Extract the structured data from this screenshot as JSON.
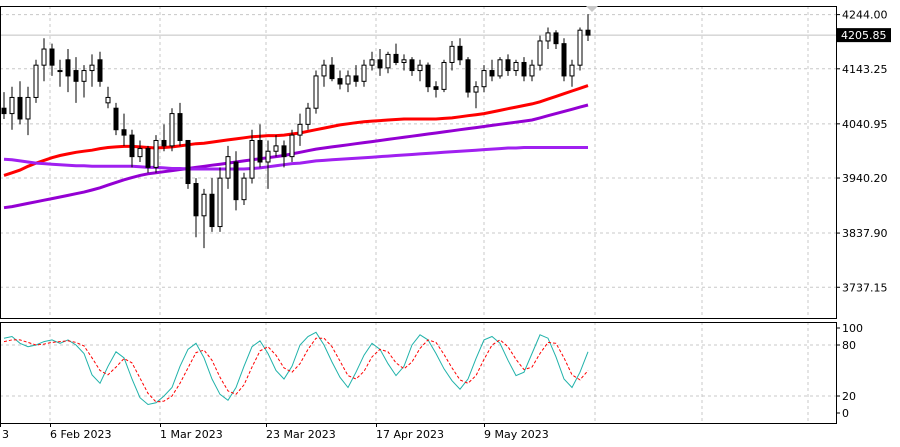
{
  "chart_data": [
    {
      "type": "candlestick",
      "price_axis": {
        "ylim": [
          3680,
          4260
        ],
        "ticks": [
          "4244.00",
          "4143.25",
          "4040.95",
          "3940.20",
          "3837.90",
          "3737.15"
        ],
        "current_price_label": "4205.85",
        "current_price": 4205.85
      },
      "candles": [
        {
          "o": 4070,
          "h": 4100,
          "l": 4050,
          "c": 4060
        },
        {
          "o": 4060,
          "h": 4110,
          "l": 4030,
          "c": 4090
        },
        {
          "o": 4090,
          "h": 4120,
          "l": 4040,
          "c": 4050
        },
        {
          "o": 4050,
          "h": 4110,
          "l": 4020,
          "c": 4090
        },
        {
          "o": 4090,
          "h": 4160,
          "l": 4080,
          "c": 4150
        },
        {
          "o": 4150,
          "h": 4200,
          "l": 4120,
          "c": 4180
        },
        {
          "o": 4180,
          "h": 4190,
          "l": 4130,
          "c": 4150
        },
        {
          "o": 4140,
          "h": 4160,
          "l": 4110,
          "c": 4140
        },
        {
          "o": 4160,
          "h": 4180,
          "l": 4100,
          "c": 4130
        },
        {
          "o": 4140,
          "h": 4165,
          "l": 4080,
          "c": 4120
        },
        {
          "o": 4120,
          "h": 4150,
          "l": 4090,
          "c": 4140
        },
        {
          "o": 4140,
          "h": 4170,
          "l": 4110,
          "c": 4150
        },
        {
          "o": 4160,
          "h": 4175,
          "l": 4110,
          "c": 4120
        },
        {
          "o": 4080,
          "h": 4110,
          "l": 4070,
          "c": 4090
        },
        {
          "o": 4070,
          "h": 4080,
          "l": 4020,
          "c": 4030
        },
        {
          "o": 4030,
          "h": 4060,
          "l": 4000,
          "c": 4020
        },
        {
          "o": 4020,
          "h": 4030,
          "l": 3960,
          "c": 3980
        },
        {
          "o": 3980,
          "h": 4010,
          "l": 3970,
          "c": 3995
        },
        {
          "o": 3995,
          "h": 4000,
          "l": 3950,
          "c": 3960
        },
        {
          "o": 3960,
          "h": 4020,
          "l": 3950,
          "c": 4010
        },
        {
          "o": 4010,
          "h": 4040,
          "l": 3990,
          "c": 4000
        },
        {
          "o": 4000,
          "h": 4070,
          "l": 3990,
          "c": 4060
        },
        {
          "o": 4060,
          "h": 4080,
          "l": 4000,
          "c": 4010
        },
        {
          "o": 4010,
          "h": 4010,
          "l": 3920,
          "c": 3930
        },
        {
          "o": 3930,
          "h": 3940,
          "l": 3830,
          "c": 3870
        },
        {
          "o": 3870,
          "h": 3920,
          "l": 3810,
          "c": 3910
        },
        {
          "o": 3910,
          "h": 3940,
          "l": 3840,
          "c": 3850
        },
        {
          "o": 3850,
          "h": 3960,
          "l": 3840,
          "c": 3940
        },
        {
          "o": 3940,
          "h": 4000,
          "l": 3920,
          "c": 3980
        },
        {
          "o": 3970,
          "h": 3990,
          "l": 3880,
          "c": 3900
        },
        {
          "o": 3900,
          "h": 3950,
          "l": 3890,
          "c": 3940
        },
        {
          "o": 3940,
          "h": 4030,
          "l": 3930,
          "c": 4010
        },
        {
          "o": 4010,
          "h": 4040,
          "l": 3960,
          "c": 3970
        },
        {
          "o": 3970,
          "h": 4010,
          "l": 3920,
          "c": 3990
        },
        {
          "o": 3990,
          "h": 4020,
          "l": 3980,
          "c": 4000
        },
        {
          "o": 4000,
          "h": 4010,
          "l": 3960,
          "c": 3980
        },
        {
          "o": 3980,
          "h": 4030,
          "l": 3970,
          "c": 4020
        },
        {
          "o": 4020,
          "h": 4060,
          "l": 4000,
          "c": 4040
        },
        {
          "o": 4040,
          "h": 4080,
          "l": 4030,
          "c": 4070
        },
        {
          "o": 4070,
          "h": 4140,
          "l": 4060,
          "c": 4130
        },
        {
          "o": 4130,
          "h": 4160,
          "l": 4110,
          "c": 4150
        },
        {
          "o": 4150,
          "h": 4165,
          "l": 4120,
          "c": 4125
        },
        {
          "o": 4125,
          "h": 4140,
          "l": 4105,
          "c": 4115
        },
        {
          "o": 4115,
          "h": 4140,
          "l": 4100,
          "c": 4130
        },
        {
          "o": 4130,
          "h": 4150,
          "l": 4110,
          "c": 4120
        },
        {
          "o": 4120,
          "h": 4160,
          "l": 4110,
          "c": 4150
        },
        {
          "o": 4150,
          "h": 4175,
          "l": 4140,
          "c": 4160
        },
        {
          "o": 4160,
          "h": 4180,
          "l": 4130,
          "c": 4145
        },
        {
          "o": 4145,
          "h": 4175,
          "l": 4135,
          "c": 4170
        },
        {
          "o": 4170,
          "h": 4190,
          "l": 4150,
          "c": 4155
        },
        {
          "o": 4155,
          "h": 4170,
          "l": 4140,
          "c": 4160
        },
        {
          "o": 4160,
          "h": 4165,
          "l": 4130,
          "c": 4140
        },
        {
          "o": 4140,
          "h": 4160,
          "l": 4120,
          "c": 4150
        },
        {
          "o": 4150,
          "h": 4155,
          "l": 4100,
          "c": 4110
        },
        {
          "o": 4110,
          "h": 4120,
          "l": 4090,
          "c": 4105
        },
        {
          "o": 4105,
          "h": 4160,
          "l": 4100,
          "c": 4155
        },
        {
          "o": 4155,
          "h": 4195,
          "l": 4140,
          "c": 4185
        },
        {
          "o": 4185,
          "h": 4200,
          "l": 4150,
          "c": 4160
        },
        {
          "o": 4160,
          "h": 4165,
          "l": 4090,
          "c": 4100
        },
        {
          "o": 4100,
          "h": 4120,
          "l": 4070,
          "c": 4110
        },
        {
          "o": 4110,
          "h": 4150,
          "l": 4100,
          "c": 4140
        },
        {
          "o": 4140,
          "h": 4160,
          "l": 4120,
          "c": 4130
        },
        {
          "o": 4130,
          "h": 4165,
          "l": 4125,
          "c": 4160
        },
        {
          "o": 4160,
          "h": 4170,
          "l": 4130,
          "c": 4140
        },
        {
          "o": 4140,
          "h": 4160,
          "l": 4130,
          "c": 4155
        },
        {
          "o": 4155,
          "h": 4165,
          "l": 4120,
          "c": 4130
        },
        {
          "o": 4130,
          "h": 4160,
          "l": 4120,
          "c": 4150
        },
        {
          "o": 4150,
          "h": 4205,
          "l": 4140,
          "c": 4195
        },
        {
          "o": 4195,
          "h": 4220,
          "l": 4180,
          "c": 4210
        },
        {
          "o": 4210,
          "h": 4215,
          "l": 4180,
          "c": 4190
        },
        {
          "o": 4190,
          "h": 4200,
          "l": 4120,
          "c": 4130
        },
        {
          "o": 4130,
          "h": 4160,
          "l": 4110,
          "c": 4150
        },
        {
          "o": 4150,
          "h": 4220,
          "l": 4140,
          "c": 4215
        },
        {
          "o": 4215,
          "h": 4245,
          "l": 4195,
          "c": 4205.85
        }
      ],
      "moving_averages": [
        {
          "color": "#ff0000",
          "values": [
            3945,
            3950,
            3955,
            3962,
            3968,
            3973,
            3978,
            3982,
            3985,
            3988,
            3990,
            3992,
            3995,
            3997,
            3998,
            3999,
            3999,
            3998,
            3997,
            3996,
            3997,
            3998,
            4000,
            4002,
            4004,
            4005,
            4007,
            4009,
            4011,
            4013,
            4015,
            4017,
            4018,
            4019,
            4019,
            4020,
            4022,
            4024,
            4027,
            4030,
            4033,
            4036,
            4039,
            4041,
            4043,
            4045,
            4046,
            4047,
            4048,
            4049,
            4050,
            4050,
            4050,
            4050,
            4050,
            4051,
            4052,
            4054,
            4056,
            4058,
            4060,
            4063,
            4066,
            4069,
            4072,
            4075,
            4078,
            4082,
            4087,
            4092,
            4097,
            4102,
            4107,
            4112
          ]
        },
        {
          "color": "#9400d3",
          "values": [
            3885,
            3887,
            3890,
            3893,
            3896,
            3899,
            3902,
            3905,
            3908,
            3911,
            3914,
            3918,
            3922,
            3927,
            3932,
            3937,
            3941,
            3945,
            3948,
            3950,
            3952,
            3954,
            3956,
            3958,
            3960,
            3962,
            3964,
            3966,
            3968,
            3970,
            3972,
            3974,
            3976,
            3978,
            3980,
            3982,
            3985,
            3988,
            3991,
            3994,
            3996,
            3998,
            4000,
            4002,
            4004,
            4006,
            4008,
            4010,
            4012,
            4014,
            4016,
            4018,
            4020,
            4022,
            4024,
            4026,
            4028,
            4030,
            4032,
            4034,
            4036,
            4038,
            4040,
            4042,
            4044,
            4046,
            4048,
            4052,
            4056,
            4060,
            4064,
            4068,
            4072,
            4076
          ]
        },
        {
          "color": "#a020f0",
          "values": [
            3975,
            3974,
            3972,
            3970,
            3968,
            3967,
            3966,
            3965,
            3964,
            3963,
            3963,
            3962,
            3962,
            3962,
            3962,
            3962,
            3962,
            3961,
            3960,
            3960,
            3959,
            3958,
            3958,
            3957,
            3957,
            3957,
            3957,
            3957,
            3957,
            3957,
            3957,
            3958,
            3959,
            3961,
            3963,
            3965,
            3967,
            3968,
            3970,
            3972,
            3973,
            3974,
            3975,
            3976,
            3977,
            3978,
            3979,
            3980,
            3981,
            3982,
            3983,
            3984,
            3985,
            3986,
            3987,
            3988,
            3989,
            3990,
            3991,
            3992,
            3993,
            3994,
            3995,
            3996,
            3996,
            3997,
            3997,
            3997,
            3997,
            3997,
            3997,
            3997,
            3997,
            3997
          ]
        }
      ]
    },
    {
      "type": "line",
      "ylim": [
        0,
        100
      ],
      "ticks": [
        "100",
        "80",
        "20",
        "0"
      ],
      "series": [
        {
          "color": "#20b2aa",
          "style": "solid",
          "values": [
            88,
            90,
            82,
            78,
            80,
            84,
            86,
            82,
            86,
            80,
            70,
            45,
            35,
            55,
            72,
            65,
            40,
            18,
            10,
            12,
            20,
            30,
            55,
            75,
            82,
            65,
            40,
            22,
            15,
            30,
            55,
            78,
            85,
            70,
            50,
            40,
            55,
            80,
            90,
            95,
            80,
            60,
            42,
            30,
            48,
            68,
            82,
            75,
            58,
            44,
            55,
            80,
            92,
            86,
            70,
            52,
            38,
            28,
            40,
            64,
            86,
            90,
            82,
            62,
            44,
            48,
            70,
            92,
            88,
            66,
            40,
            30,
            48,
            72
          ]
        },
        {
          "color": "#ff0000",
          "style": "dashed",
          "values": [
            84,
            86,
            86,
            83,
            80,
            81,
            83,
            84,
            85,
            83,
            79,
            65,
            50,
            45,
            54,
            64,
            59,
            41,
            23,
            13,
            14,
            20,
            35,
            53,
            71,
            74,
            62,
            42,
            26,
            22,
            33,
            54,
            73,
            78,
            68,
            53,
            48,
            58,
            75,
            88,
            88,
            78,
            61,
            44,
            40,
            49,
            66,
            75,
            72,
            59,
            52,
            60,
            76,
            86,
            83,
            69,
            53,
            39,
            35,
            44,
            63,
            80,
            86,
            78,
            63,
            51,
            54,
            70,
            83,
            82,
            65,
            45,
            39,
            50
          ]
        }
      ],
      "date_labels": [
        "3",
        "6 Feb 2023",
        "1 Mar 2023",
        "23 Mar 2023",
        "17 Apr 2023",
        "9 May 2023"
      ]
    }
  ]
}
